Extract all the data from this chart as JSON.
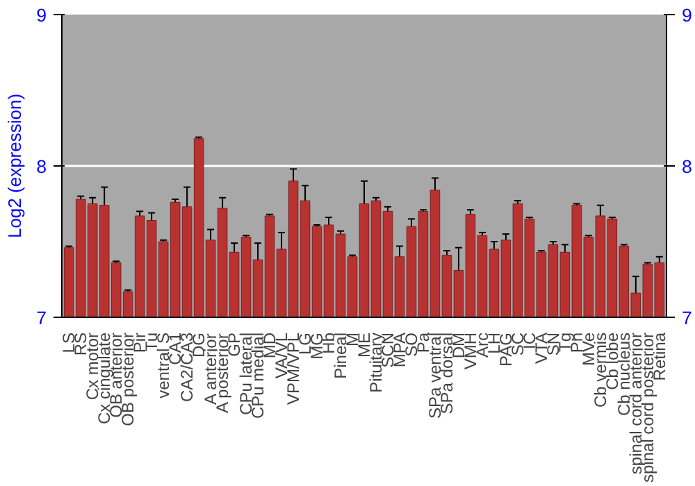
{
  "chart_data": {
    "type": "bar",
    "ylabel": "Log2 (expression)",
    "categories": [
      "LS",
      "RS",
      "Cx motor",
      "Cx cingulate",
      "OB anterior",
      "OB posterior",
      "Pir",
      "Tu",
      "ventral S",
      "CA1",
      "CA2/CA3",
      "DG",
      "A anterior",
      "A posterior",
      "GP",
      "CPu lateral",
      "CPu medial",
      "MD",
      "VA/VL",
      "VPM/VPL",
      "LG",
      "MG",
      "Hb",
      "Pineal",
      "M",
      "ME",
      "Pituitary",
      "SCN",
      "MPA",
      "SO",
      "Pa",
      "SPa ventral",
      "SPa dorsal",
      "DM",
      "VMH",
      "Arc",
      "LH",
      "PAG",
      "SC",
      "IC",
      "VTA",
      "SN",
      "Tg",
      "Pn",
      "MVe",
      "Cb vermis",
      "Cb lobe",
      "Cb nucleus",
      "spinal cord anterior",
      "spinal cord posterior",
      "Retina"
    ],
    "values": [
      7.46,
      7.78,
      7.75,
      7.74,
      7.36,
      7.17,
      7.67,
      7.64,
      7.5,
      7.76,
      7.73,
      8.18,
      7.51,
      7.72,
      7.43,
      7.53,
      7.38,
      7.67,
      7.45,
      7.9,
      7.77,
      7.6,
      7.61,
      7.55,
      7.4,
      7.75,
      7.77,
      7.7,
      7.4,
      7.6,
      7.7,
      7.84,
      7.41,
      7.31,
      7.68,
      7.54,
      7.45,
      7.51,
      7.75,
      7.65,
      7.43,
      7.48,
      7.43,
      7.74,
      7.53,
      7.67,
      7.65,
      7.47,
      7.16,
      7.35,
      7.36
    ],
    "errors": [
      0.01,
      0.02,
      0.04,
      0.12,
      0.01,
      0.01,
      0.03,
      0.05,
      0.01,
      0.02,
      0.13,
      0.01,
      0.07,
      0.07,
      0.06,
      0.01,
      0.11,
      0.01,
      0.11,
      0.08,
      0.1,
      0.01,
      0.05,
      0.02,
      0.01,
      0.15,
      0.02,
      0.03,
      0.07,
      0.05,
      0.01,
      0.08,
      0.03,
      0.15,
      0.03,
      0.02,
      0.05,
      0.04,
      0.02,
      0.01,
      0.01,
      0.02,
      0.05,
      0.01,
      0.01,
      0.07,
      0.01,
      0.01,
      0.11,
      0.01,
      0.04
    ],
    "color": "#b83232",
    "ylim": [
      7,
      9
    ],
    "yticks": [
      7,
      8,
      9
    ],
    "y2lim": [
      7,
      9
    ],
    "y2ticks": [
      7,
      8,
      9
    ],
    "grid": "y"
  }
}
